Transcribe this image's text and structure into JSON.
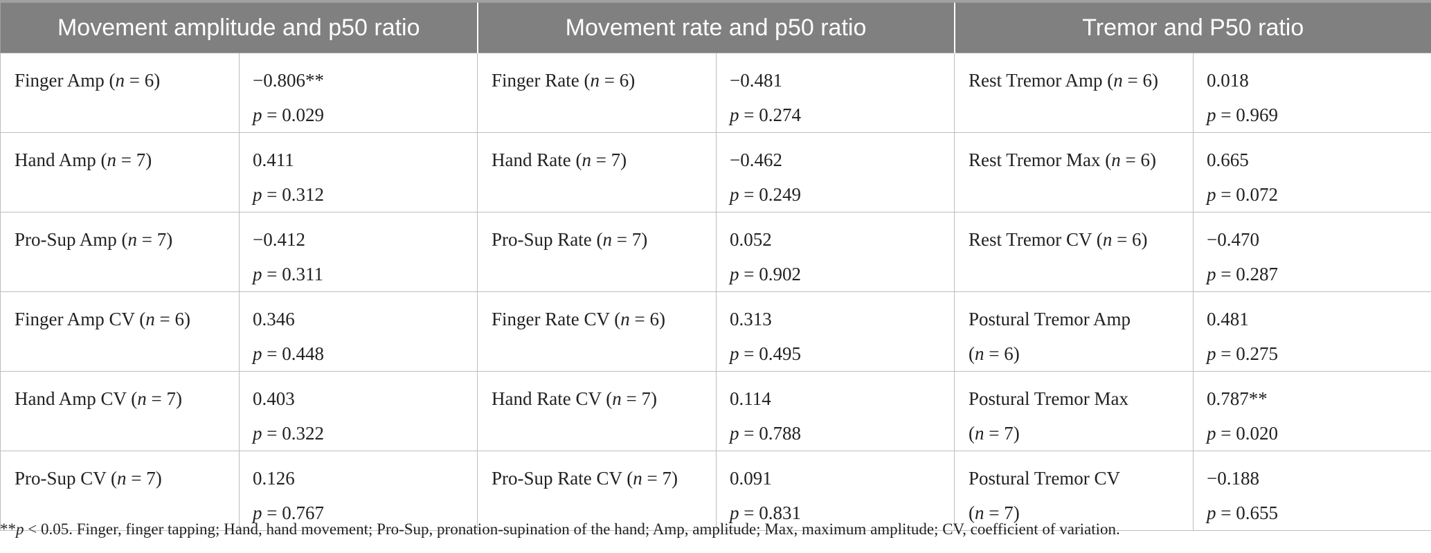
{
  "table": {
    "headers": [
      "Movement amplitude and p50 ratio",
      "Movement rate and p50 ratio",
      "Tremor and P50 ratio"
    ],
    "rows": [
      [
        {
          "label": "Finger Amp (",
          "n": "n",
          "label_end": " = 6)",
          "label2": "",
          "r": "−0.806**",
          "p": " = 0.029"
        },
        {
          "label": "Finger Rate (",
          "n": "n",
          "label_end": " = 6)",
          "label2": "",
          "r": "−0.481",
          "p": " = 0.274"
        },
        {
          "label": "Rest Tremor Amp (",
          "n": "n",
          "label_end": " = 6)",
          "label2": "",
          "r": "0.018",
          "p": " = 0.969"
        }
      ],
      [
        {
          "label": "Hand Amp (",
          "n": "n",
          "label_end": " = 7)",
          "label2": "",
          "r": "0.411",
          "p": " = 0.312"
        },
        {
          "label": "Hand Rate (",
          "n": "n",
          "label_end": " = 7)",
          "label2": "",
          "r": "−0.462",
          "p": " = 0.249"
        },
        {
          "label": "Rest Tremor Max (",
          "n": "n",
          "label_end": " = 6)",
          "label2": "",
          "r": "0.665",
          "p": " = 0.072"
        }
      ],
      [
        {
          "label": "Pro-Sup Amp (",
          "n": "n",
          "label_end": " = 7)",
          "label2": "",
          "r": "−0.412",
          "p": " = 0.311"
        },
        {
          "label": "Pro-Sup Rate (",
          "n": "n",
          "label_end": " = 7)",
          "label2": "",
          "r": "0.052",
          "p": " = 0.902"
        },
        {
          "label": "Rest Tremor CV (",
          "n": "n",
          "label_end": " = 6)",
          "label2": "",
          "r": "−0.470",
          "p": " = 0.287"
        }
      ],
      [
        {
          "label": "Finger Amp CV (",
          "n": "n",
          "label_end": " = 6)",
          "label2": "",
          "r": "0.346",
          "p": " = 0.448"
        },
        {
          "label": "Finger Rate CV (",
          "n": "n",
          "label_end": " = 6)",
          "label2": "",
          "r": "0.313",
          "p": " = 0.495"
        },
        {
          "label": "Postural Tremor Amp",
          "n": "",
          "label_end": "",
          "label2": "(n = 6)",
          "r": "0.481",
          "p": " = 0.275"
        }
      ],
      [
        {
          "label": "Hand Amp CV (",
          "n": "n",
          "label_end": " = 7)",
          "label2": "",
          "r": "0.403",
          "p": " = 0.322"
        },
        {
          "label": "Hand Rate CV (",
          "n": "n",
          "label_end": " = 7)",
          "label2": "",
          "r": "0.114",
          "p": " = 0.788"
        },
        {
          "label": "Postural Tremor Max",
          "n": "",
          "label_end": "",
          "label2": "(n = 7)",
          "r": "0.787**",
          "p": " = 0.020"
        }
      ],
      [
        {
          "label": "Pro-Sup CV (",
          "n": "n",
          "label_end": " = 7)",
          "label2": "",
          "r": "0.126",
          "p": " = 0.767"
        },
        {
          "label": "Pro-Sup Rate CV (",
          "n": "n",
          "label_end": " = 7)",
          "label2": "",
          "r": "0.091",
          "p": " = 0.831"
        },
        {
          "label": "Postural Tremor CV",
          "n": "",
          "label_end": "",
          "label2": "(n = 7)",
          "r": "−0.188",
          "p": " = 0.655"
        }
      ]
    ],
    "p_symbol": "p"
  },
  "footnote": {
    "stars": "**",
    "p": "p",
    "text": " < 0.05. Finger, finger tapping; Hand, hand movement; Pro-Sup, pronation-supination of the hand; Amp, amplitude; Max, maximum amplitude; CV, coefficient of variation."
  }
}
